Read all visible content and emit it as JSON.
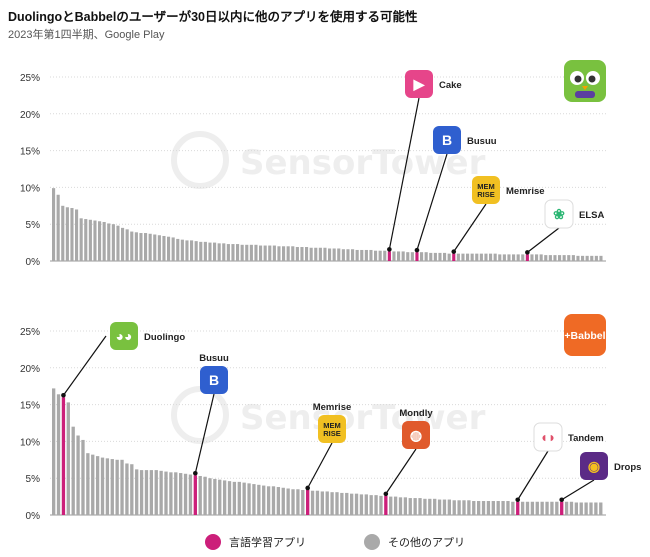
{
  "title": "DuolingoとBabbelのユーザーが30日以内に他のアプリを使用する可能性",
  "subtitle": "2023年第1四半期、Google Play",
  "watermark": "SensorTower",
  "colors": {
    "language": "#cc1f7a",
    "other": "#a9a9a9",
    "grid": "#d9d9d9"
  },
  "legend": [
    {
      "label": "言語学習アプリ",
      "color": "#cc1f7a"
    },
    {
      "label": "その他のアプリ",
      "color": "#a9a9a9"
    }
  ],
  "chart_data": [
    {
      "type": "bar",
      "brand": "Duolingo",
      "brand_icon": "duolingo-owl-icon",
      "ylim": [
        0,
        25
      ],
      "yticks": [
        "0%",
        "5%",
        "10%",
        "15%",
        "20%",
        "25%"
      ],
      "values": [
        9.9,
        9.0,
        7.5,
        7.3,
        7.2,
        7.0,
        5.8,
        5.7,
        5.6,
        5.5,
        5.4,
        5.3,
        5.1,
        5.0,
        4.8,
        4.5,
        4.3,
        4.0,
        3.9,
        3.8,
        3.8,
        3.7,
        3.6,
        3.5,
        3.4,
        3.3,
        3.2,
        3.0,
        2.9,
        2.8,
        2.8,
        2.7,
        2.6,
        2.6,
        2.5,
        2.5,
        2.4,
        2.4,
        2.3,
        2.3,
        2.3,
        2.2,
        2.2,
        2.2,
        2.2,
        2.1,
        2.1,
        2.1,
        2.1,
        2.0,
        2.0,
        2.0,
        2.0,
        1.9,
        1.9,
        1.9,
        1.8,
        1.8,
        1.8,
        1.8,
        1.7,
        1.7,
        1.7,
        1.6,
        1.6,
        1.6,
        1.5,
        1.5,
        1.5,
        1.5,
        1.4,
        1.4,
        1.4,
        1.3,
        1.3,
        1.3,
        1.3,
        1.2,
        1.2,
        1.2,
        1.2,
        1.2,
        1.1,
        1.1,
        1.1,
        1.1,
        1.0,
        1.0,
        1.0,
        1.0,
        1.0,
        1.0,
        1.0,
        1.0,
        1.0,
        1.0,
        1.0,
        0.9,
        0.9,
        0.9,
        0.9,
        0.9,
        0.9,
        0.9,
        0.9,
        0.9,
        0.9,
        0.8,
        0.8,
        0.8,
        0.8,
        0.8,
        0.8,
        0.8,
        0.7,
        0.7,
        0.7,
        0.7,
        0.7,
        0.7
      ],
      "highlights": [
        {
          "index": 73,
          "label": "Cake",
          "icon": "cake-icon",
          "bg": "#e6458a",
          "fg": "#ffffff",
          "text": "▶"
        },
        {
          "index": 79,
          "label": "Busuu",
          "icon": "busuu-icon",
          "bg": "#2f5fcf",
          "fg": "#ffffff",
          "text": "B"
        },
        {
          "index": 87,
          "label": "Memrise",
          "icon": "memrise-icon",
          "bg": "#f1c022",
          "fg": "#222222",
          "text": "MEM\nRISE"
        },
        {
          "index": 103,
          "label": "ELSA",
          "icon": "elsa-icon",
          "bg": "#ffffff",
          "fg": "#2bb673",
          "text": "❀"
        }
      ]
    },
    {
      "type": "bar",
      "brand": "+Babbel",
      "brand_icon": "babbel-icon",
      "ylim": [
        0,
        25
      ],
      "yticks": [
        "0%",
        "5%",
        "10%",
        "15%",
        "20%",
        "25%"
      ],
      "values": [
        17.2,
        16.4,
        16.0,
        15.3,
        12.0,
        10.8,
        10.2,
        8.4,
        8.2,
        8.0,
        7.8,
        7.7,
        7.6,
        7.5,
        7.5,
        7.0,
        6.9,
        6.2,
        6.1,
        6.1,
        6.1,
        6.1,
        6.0,
        5.9,
        5.8,
        5.8,
        5.7,
        5.6,
        5.5,
        5.4,
        5.3,
        5.2,
        5.0,
        4.9,
        4.8,
        4.7,
        4.6,
        4.5,
        4.5,
        4.4,
        4.3,
        4.2,
        4.1,
        4.0,
        3.9,
        3.9,
        3.8,
        3.7,
        3.6,
        3.5,
        3.5,
        3.4,
        3.4,
        3.3,
        3.3,
        3.2,
        3.2,
        3.1,
        3.1,
        3.0,
        3.0,
        2.9,
        2.9,
        2.8,
        2.8,
        2.7,
        2.7,
        2.6,
        2.6,
        2.5,
        2.5,
        2.4,
        2.4,
        2.3,
        2.3,
        2.3,
        2.2,
        2.2,
        2.2,
        2.1,
        2.1,
        2.1,
        2.0,
        2.0,
        2.0,
        2.0,
        1.9,
        1.9,
        1.9,
        1.9,
        1.9,
        1.9,
        1.9,
        1.9,
        1.8,
        1.8,
        1.8,
        1.8,
        1.8,
        1.8,
        1.8,
        1.8,
        1.8,
        1.8,
        1.8,
        1.8,
        1.8,
        1.7,
        1.7,
        1.7,
        1.7,
        1.7,
        1.7
      ],
      "highlights": [
        {
          "index": 2,
          "label": "Duolingo",
          "icon": "duolingo-owl-icon",
          "bg": "#79c13f",
          "fg": "#ffffff",
          "text": "◕◕"
        },
        {
          "index": 29,
          "label": "Busuu",
          "icon": "busuu-icon",
          "bg": "#2f5fcf",
          "fg": "#ffffff",
          "text": "B"
        },
        {
          "index": 52,
          "label": "Memrise",
          "icon": "memrise-icon",
          "bg": "#f1c022",
          "fg": "#222222",
          "text": "MEM\nRISE"
        },
        {
          "index": 68,
          "label": "Mondly",
          "icon": "mondly-icon",
          "bg": "#e05a2c",
          "fg": "#ffffff",
          "text": "◍"
        },
        {
          "index": 95,
          "label": "Tandem",
          "icon": "tandem-icon",
          "bg": "#ffffff",
          "fg": "#e0506a",
          "text": "◖◗"
        },
        {
          "index": 104,
          "label": "Drops",
          "icon": "drops-icon",
          "bg": "#5b2a86",
          "fg": "#f4c020",
          "text": "◉"
        }
      ]
    }
  ]
}
